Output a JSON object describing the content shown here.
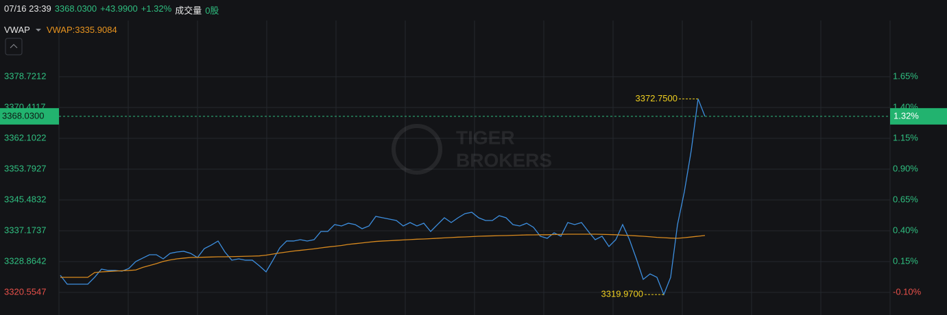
{
  "header": {
    "datetime": "07/16 23:39",
    "price": "3368.0300",
    "change": "+43.9900",
    "change_pct": "+1.32%",
    "volume_label": "成交量",
    "volume": "0股"
  },
  "indicator": {
    "name": "VWAP",
    "value_label": "VWAP:3335.9084"
  },
  "chart_data": {
    "type": "line",
    "watermark": [
      "TIGER",
      "BROKERS"
    ],
    "series": [
      {
        "name": "Price",
        "color": "#3d8fe0",
        "values": [
          3325.17,
          3322.77,
          3322.77,
          3322.77,
          3322.77,
          3324.62,
          3326.83,
          3326.47,
          3326.47,
          3326.28,
          3327.02,
          3328.87,
          3329.79,
          3330.71,
          3330.71,
          3329.6,
          3331.08,
          3331.45,
          3331.64,
          3331.08,
          3329.97,
          3332.37,
          3333.3,
          3334.41,
          3331.45,
          3329.24,
          3329.6,
          3329.24,
          3329.24,
          3327.76,
          3326.1,
          3329.24,
          3332.56,
          3334.41,
          3334.41,
          3334.77,
          3334.41,
          3334.77,
          3336.99,
          3336.99,
          3338.84,
          3338.47,
          3339.21,
          3338.84,
          3337.73,
          3338.47,
          3341.05,
          3340.68,
          3340.31,
          3339.94,
          3338.47,
          3339.39,
          3338.47,
          3339.21,
          3336.99,
          3338.84,
          3340.68,
          3339.39,
          3340.68,
          3341.79,
          3342.16,
          3340.68,
          3339.94,
          3339.94,
          3341.24,
          3340.68,
          3338.84,
          3338.47,
          3339.21,
          3338.1,
          3335.7,
          3335.14,
          3336.62,
          3335.7,
          3339.39,
          3338.84,
          3339.39,
          3336.99,
          3334.77,
          3335.7,
          3332.93,
          3334.77,
          3338.84,
          3334.77,
          3329.6,
          3324.07,
          3325.54,
          3324.62,
          3319.97,
          3324.62,
          3338.84,
          3347.7,
          3358.78,
          3372.75,
          3368.03
        ]
      },
      {
        "name": "VWAP",
        "color": "#d98a1e",
        "values": [
          3324.62,
          3324.62,
          3324.62,
          3324.62,
          3324.62,
          3325.91,
          3326.1,
          3326.2,
          3326.3,
          3326.4,
          3326.47,
          3326.6,
          3327.3,
          3327.8,
          3328.3,
          3328.9,
          3329.3,
          3329.6,
          3329.8,
          3329.97,
          3330.0,
          3330.05,
          3330.1,
          3330.15,
          3330.16,
          3330.2,
          3330.25,
          3330.3,
          3330.34,
          3330.4,
          3330.6,
          3330.9,
          3331.2,
          3331.45,
          3331.7,
          3331.9,
          3332.1,
          3332.3,
          3332.56,
          3332.8,
          3333.0,
          3333.2,
          3333.5,
          3333.7,
          3333.9,
          3334.1,
          3334.3,
          3334.41,
          3334.5,
          3334.6,
          3334.7,
          3334.8,
          3334.9,
          3334.96,
          3335.05,
          3335.15,
          3335.25,
          3335.35,
          3335.45,
          3335.51,
          3335.6,
          3335.7,
          3335.75,
          3335.8,
          3335.85,
          3335.88,
          3335.95,
          3336.0,
          3336.05,
          3336.07,
          3336.1,
          3336.1,
          3336.15,
          3336.2,
          3336.25,
          3336.25,
          3336.25,
          3336.25,
          3336.25,
          3336.2,
          3336.15,
          3336.1,
          3336.0,
          3335.9,
          3335.8,
          3335.7,
          3335.55,
          3335.4,
          3335.3,
          3335.2,
          3335.14,
          3335.3,
          3335.5,
          3335.7,
          3335.9084
        ]
      }
    ],
    "ylim": [
      3314.46,
      3393.86
    ],
    "yticks": [
      3378.7212,
      3370.4117,
      3362.1022,
      3353.7927,
      3345.4832,
      3337.1737,
      3328.8642,
      3320.5547
    ],
    "y2lim": [
      -0.283,
      2.106
    ],
    "y2ticks": [
      {
        "value": 1.65,
        "label": "1.65%"
      },
      {
        "value": 1.4,
        "label": "1.40%"
      },
      {
        "value": 1.15,
        "label": "1.15%"
      },
      {
        "value": 0.9,
        "label": "0.90%"
      },
      {
        "value": 0.65,
        "label": "0.65%"
      },
      {
        "value": 0.4,
        "label": "0.40%"
      },
      {
        "value": 0.15,
        "label": "0.15%"
      },
      {
        "value": -0.1,
        "label": "-0.10%"
      }
    ],
    "grid": true,
    "current": {
      "value": 3368.03,
      "label": "3368.0300",
      "pct_label": "1.32%"
    },
    "annotations": [
      {
        "value": 3372.75,
        "label": "3372.7500"
      },
      {
        "value": 3319.97,
        "label": "3319.9700"
      }
    ]
  }
}
